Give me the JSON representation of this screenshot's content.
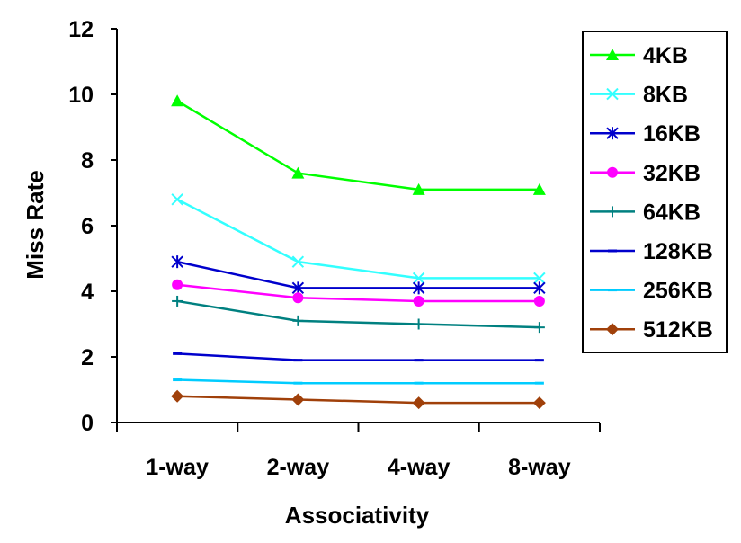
{
  "chart_data": {
    "type": "line",
    "title": "",
    "xlabel": "Associativity",
    "ylabel": "Miss Rate",
    "categories": [
      "1-way",
      "2-way",
      "4-way",
      "8-way"
    ],
    "ylim": [
      0,
      12
    ],
    "yticks": [
      0,
      2,
      4,
      6,
      8,
      10,
      12
    ],
    "grid": false,
    "legend_position": "right",
    "series": [
      {
        "name": "4KB",
        "color": "#00FF00",
        "marker": "triangle",
        "values": [
          9.8,
          7.6,
          7.1,
          7.1
        ]
      },
      {
        "name": "8KB",
        "color": "#33FFFF",
        "marker": "x",
        "values": [
          6.8,
          4.9,
          4.4,
          4.4
        ]
      },
      {
        "name": "16KB",
        "color": "#0000CC",
        "marker": "asterisk",
        "values": [
          4.9,
          4.1,
          4.1,
          4.1
        ]
      },
      {
        "name": "32KB",
        "color": "#FF00FF",
        "marker": "circle",
        "values": [
          4.2,
          3.8,
          3.7,
          3.7
        ]
      },
      {
        "name": "64KB",
        "color": "#008080",
        "marker": "plus",
        "values": [
          3.7,
          3.1,
          3.0,
          2.9
        ]
      },
      {
        "name": "128KB",
        "color": "#0000CC",
        "marker": "dash",
        "values": [
          2.1,
          1.9,
          1.9,
          1.9
        ]
      },
      {
        "name": "256KB",
        "color": "#00CCFF",
        "marker": "dash",
        "values": [
          1.3,
          1.2,
          1.2,
          1.2
        ]
      },
      {
        "name": "512KB",
        "color": "#A0400A",
        "marker": "diamond",
        "values": [
          0.8,
          0.7,
          0.6,
          0.6
        ]
      }
    ]
  }
}
